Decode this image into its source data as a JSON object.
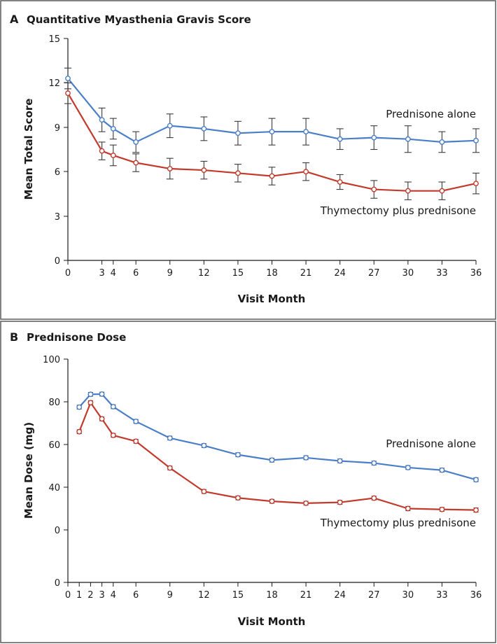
{
  "colors": {
    "frame": "#5a5a5a",
    "prednisone_alone": "#4a7fc8",
    "thymectomy": "#c23a2c",
    "errorbar": "#3a3a3a"
  },
  "chart_data": [
    {
      "type": "line",
      "panel": "A",
      "title": "Quantitative Myasthenia Gravis Score",
      "xlabel": "Visit Month",
      "ylabel": "Mean Total Score",
      "xlim": [
        0,
        36
      ],
      "ylim": [
        0,
        15
      ],
      "xticks": [
        "0",
        "3",
        "4",
        "6",
        "9",
        "12",
        "15",
        "18",
        "21",
        "24",
        "27",
        "30",
        "33",
        "36"
      ],
      "yticks": [
        "0",
        "3",
        "6",
        "9",
        "12",
        "15"
      ],
      "grid": false,
      "series": [
        {
          "name": "Prednisone alone",
          "color": "#4a7fc8",
          "x": [
            0,
            3,
            4,
            6,
            9,
            12,
            15,
            18,
            21,
            24,
            27,
            30,
            33,
            36
          ],
          "y": [
            12.3,
            9.5,
            8.9,
            8.0,
            9.1,
            8.9,
            8.6,
            8.7,
            8.7,
            8.2,
            8.3,
            8.2,
            8.0,
            8.1
          ],
          "err": [
            0.7,
            0.8,
            0.7,
            0.7,
            0.8,
            0.8,
            0.8,
            0.9,
            0.9,
            0.7,
            0.8,
            0.9,
            0.7,
            0.8
          ]
        },
        {
          "name": "Thymectomy plus prednisone",
          "color": "#c23a2c",
          "x": [
            0,
            3,
            4,
            6,
            9,
            12,
            15,
            18,
            21,
            24,
            27,
            30,
            33,
            36
          ],
          "y": [
            11.3,
            7.4,
            7.1,
            6.6,
            6.2,
            6.1,
            5.9,
            5.7,
            6.0,
            5.3,
            4.8,
            4.7,
            4.7,
            5.2
          ],
          "err": [
            0.7,
            0.6,
            0.7,
            0.6,
            0.7,
            0.6,
            0.6,
            0.6,
            0.6,
            0.5,
            0.6,
            0.6,
            0.6,
            0.7
          ]
        }
      ]
    },
    {
      "type": "line",
      "panel": "B",
      "title": "Prednisone Dose",
      "xlabel": "Visit Month",
      "ylabel": "Mean Dose (mg)",
      "xlim": [
        0,
        36
      ],
      "xticks": [
        "0",
        "1",
        "2",
        "3",
        "4",
        "6",
        "9",
        "12",
        "15",
        "18",
        "21",
        "24",
        "27",
        "30",
        "33",
        "36"
      ],
      "yticks": [
        "0",
        "0",
        "40",
        "60",
        "80",
        "100"
      ],
      "grid": false,
      "series": [
        {
          "name": "Prednisone alone",
          "color": "#4a7fc8",
          "x": [
            1,
            2,
            3,
            4,
            6,
            9,
            12,
            15,
            18,
            21,
            24,
            27,
            30,
            33,
            36
          ],
          "y": [
            77.5,
            83.5,
            83.6,
            77.7,
            70.8,
            63.0,
            59.5,
            55.2,
            52.7,
            53.8,
            52.3,
            51.3,
            49.2,
            48.0,
            43.5
          ],
          "err": [
            0.9,
            0.9,
            0.9,
            0.9,
            0.9,
            0.9,
            0.9,
            0.9,
            0.9,
            0.9,
            0.9,
            0.9,
            0.9,
            0.9,
            0.9
          ]
        },
        {
          "name": "Thymectomy plus prednisone",
          "color": "#c23a2c",
          "x": [
            1,
            2,
            3,
            4,
            6,
            9,
            12,
            15,
            18,
            21,
            24,
            27,
            30,
            33,
            36
          ],
          "y": [
            66.0,
            79.6,
            72.0,
            64.3,
            61.5,
            49.0,
            38.0,
            35.0,
            33.4,
            32.5,
            32.9,
            34.9,
            30.0,
            29.6,
            29.3
          ],
          "err": [
            0.9,
            0.9,
            0.9,
            0.9,
            0.9,
            0.9,
            0.9,
            0.9,
            0.9,
            0.9,
            0.9,
            0.9,
            1.0,
            0.9,
            1.0
          ]
        }
      ]
    }
  ]
}
